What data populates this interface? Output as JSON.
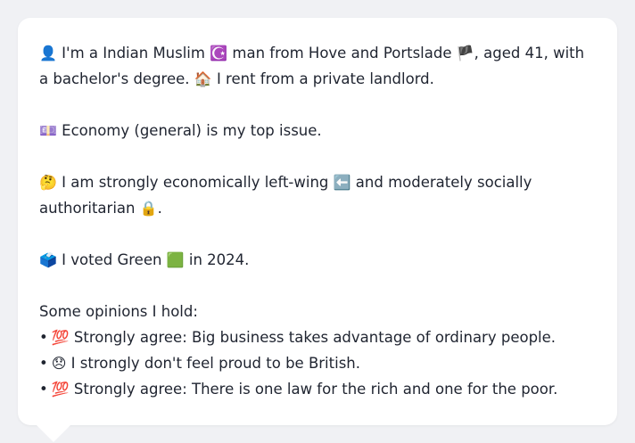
{
  "profile": {
    "intro": {
      "e1": "👤",
      "t1": " I'm a Indian Muslim ",
      "e2": "☪️",
      "t2": " man from Hove and Portslade ",
      "e3": "🏴",
      "t3": ", aged 41, with a bachelor's degree. ",
      "e4": "🏠",
      "t4": " I rent from a private landlord."
    },
    "issue": {
      "e1": "💷",
      "t1": " Economy (general) is my top issue."
    },
    "ideology": {
      "e1": "🤔",
      "t1": " I am strongly economically left-wing ",
      "e2": "⬅️",
      "t2": " and moderately socially authoritarian ",
      "e3": "🔒",
      "t3": "."
    },
    "vote": {
      "e1": "🗳️",
      "t1": " I voted Green ",
      "e2": "🟩",
      "t2": " in 2024."
    },
    "opinions_heading": "Some opinions I hold:",
    "opinions": [
      {
        "bullet": "•",
        "emoji": "💯",
        "text": " Strongly agree: Big business takes advantage of ordinary people."
      },
      {
        "bullet": "•",
        "emoji": "😞",
        "text": " I strongly don't feel proud to be British."
      },
      {
        "bullet": "•",
        "emoji": "💯",
        "text": " Strongly agree: There is one law for the rich and one for the poor."
      }
    ]
  }
}
